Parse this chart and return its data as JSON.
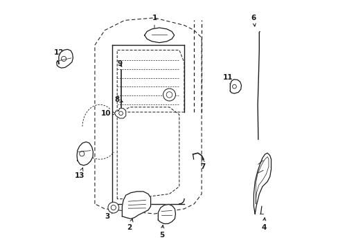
{
  "background_color": "#ffffff",
  "line_color": "#1a1a1a",
  "fig_width": 4.89,
  "fig_height": 3.6,
  "dpi": 100,
  "label_positions": {
    "1": [
      0.44,
      0.93,
      0.44,
      0.865
    ],
    "2": [
      0.34,
      0.085,
      0.355,
      0.13
    ],
    "3": [
      0.25,
      0.13,
      0.275,
      0.155
    ],
    "4": [
      0.88,
      0.085,
      0.885,
      0.135
    ],
    "5": [
      0.47,
      0.055,
      0.475,
      0.105
    ],
    "6": [
      0.84,
      0.93,
      0.845,
      0.885
    ],
    "7": [
      0.635,
      0.33,
      0.635,
      0.365
    ],
    "8": [
      0.29,
      0.6,
      0.315,
      0.59
    ],
    "9": [
      0.3,
      0.745,
      0.315,
      0.725
    ],
    "10": [
      0.245,
      0.545,
      0.295,
      0.545
    ],
    "11": [
      0.735,
      0.69,
      0.755,
      0.655
    ],
    "12": [
      0.055,
      0.79,
      0.085,
      0.77
    ],
    "13": [
      0.14,
      0.295,
      0.155,
      0.335
    ]
  }
}
